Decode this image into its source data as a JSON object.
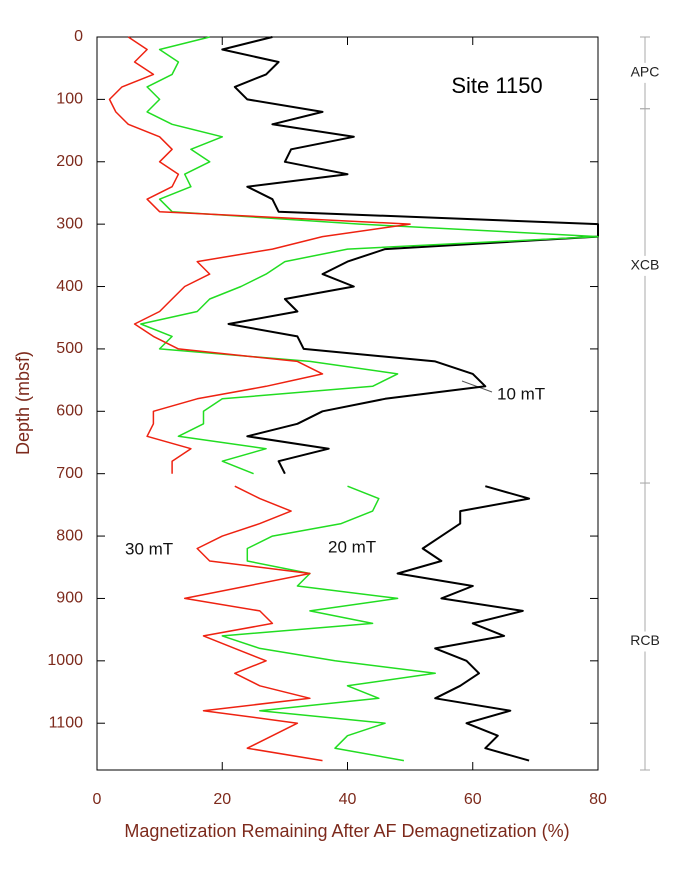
{
  "chart_data": {
    "type": "line",
    "title": "Site 1150",
    "xlabel": "Magnetization Remaining After AF Demagnetization (%)",
    "ylabel": "Depth (mbsf)",
    "xlim": [
      0,
      80
    ],
    "xticks": [
      0,
      20,
      40,
      60,
      80
    ],
    "ylim": [
      1175,
      0
    ],
    "yticks": [
      0,
      100,
      200,
      300,
      400,
      500,
      600,
      700,
      800,
      900,
      1000,
      1100
    ],
    "x": [
      0,
      20,
      40,
      60,
      80,
      100,
      120,
      140,
      160,
      180,
      200,
      220,
      240,
      260,
      280,
      300,
      320,
      340,
      360,
      380,
      400,
      420,
      440,
      460,
      480,
      500,
      520,
      540,
      560,
      580,
      600,
      620,
      640,
      660,
      680,
      700,
      710,
      720,
      740,
      760,
      780,
      800,
      820,
      840,
      860,
      880,
      900,
      920,
      940,
      960,
      980,
      1000,
      1020,
      1040,
      1060,
      1080,
      1100,
      1120,
      1140,
      1160
    ],
    "series": [
      {
        "name": "10 mT",
        "color": "#000000",
        "values": [
          28,
          20,
          29,
          27,
          22,
          24,
          36,
          28,
          41,
          31,
          30,
          40,
          24,
          28,
          29,
          80,
          80,
          46,
          40,
          36,
          41,
          30,
          32,
          21,
          32,
          33,
          54,
          60,
          62,
          46,
          36,
          32,
          24,
          37,
          29,
          30,
          null,
          62,
          69,
          58,
          58,
          55,
          52,
          55,
          48,
          60,
          55,
          68,
          60,
          65,
          54,
          59,
          61,
          58,
          54,
          66,
          59,
          64,
          62,
          69
        ]
      },
      {
        "name": "20 mT",
        "color": "#22dd22",
        "values": [
          18,
          10,
          13,
          12,
          8,
          10,
          8,
          12,
          20,
          15,
          18,
          14,
          15,
          10,
          12,
          42,
          80,
          40,
          30,
          27,
          23,
          18,
          16,
          7,
          12,
          10,
          34,
          48,
          44,
          20,
          17,
          17,
          13,
          27,
          20,
          25,
          null,
          40,
          45,
          44,
          39,
          28,
          24,
          24,
          34,
          32,
          48,
          34,
          44,
          20,
          26,
          38,
          54,
          40,
          45,
          26,
          46,
          40,
          38,
          49
        ]
      },
      {
        "name": "30 mT",
        "color": "#ee2211",
        "values": [
          5,
          8,
          6,
          9,
          4,
          2,
          3,
          5,
          10,
          12,
          10,
          13,
          12,
          8,
          10,
          50,
          36,
          28,
          16,
          18,
          14,
          12,
          10,
          6,
          9,
          13,
          32,
          36,
          27,
          16,
          9,
          9,
          8,
          15,
          12,
          12,
          null,
          22,
          26,
          31,
          26,
          20,
          16,
          18,
          34,
          24,
          14,
          26,
          28,
          17,
          22,
          27,
          22,
          26,
          34,
          17,
          32,
          28,
          24,
          36
        ]
      }
    ],
    "units": [
      {
        "name": "APC",
        "top": 0,
        "bottom": 115
      },
      {
        "name": "XCB",
        "top": 115,
        "bottom": 715
      },
      {
        "name": "RCB",
        "top": 715,
        "bottom": 1175
      }
    ]
  }
}
